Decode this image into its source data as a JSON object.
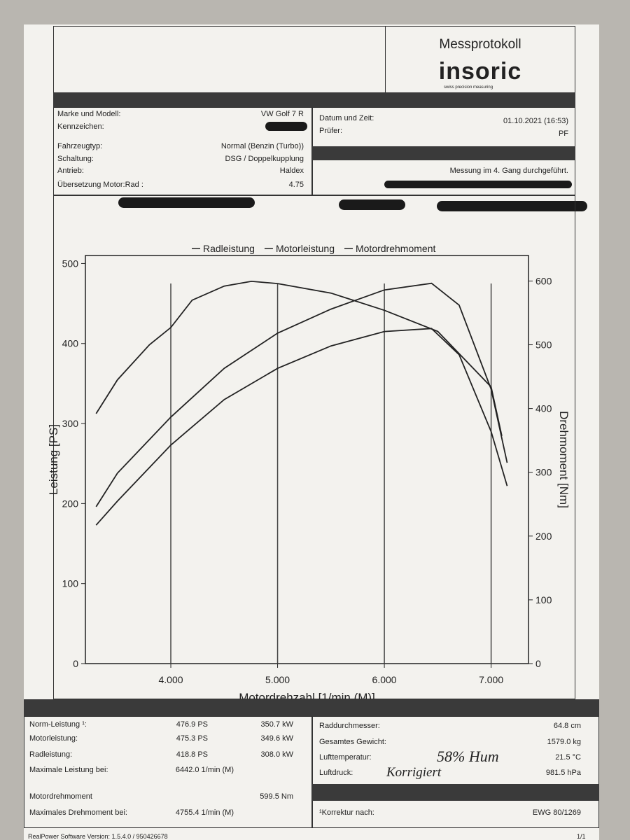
{
  "header": {
    "title": "Messprotokoll",
    "logo": "insoric",
    "tagline": "swiss precision measuring"
  },
  "vehicle": {
    "rows": [
      {
        "label": "Marke und Modell:",
        "value": "VW Golf 7 R"
      },
      {
        "label": "Kennzeichen:"
      },
      {
        "label": "Fahrzeugtyp:",
        "value": "Normal (Benzin (Turbo))"
      },
      {
        "label": "Schaltung:",
        "value": "DSG / Doppelkupplung"
      },
      {
        "label": "Antrieb:",
        "value": "Haldex"
      },
      {
        "label": "Übersetzung Motor:Rad :",
        "value": "4.75"
      }
    ]
  },
  "measurement": {
    "rows": [
      {
        "label": "Datum und Zeit:",
        "value": "01.10.2021 (16:53)"
      },
      {
        "label": "Prüfer:",
        "value": "PF"
      }
    ],
    "note": "Messung im 4. Gang durchgeführt."
  },
  "chart_data": {
    "type": "line",
    "xlabel": "Motordrehzahl [1/min (M)]",
    "ylabel": "Leistung [PS]",
    "y2label": "Drehmoment [Nm]",
    "xlim": [
      3200,
      7350
    ],
    "ylim": [
      0,
      510
    ],
    "y2lim": [
      0,
      640
    ],
    "xticks": [
      {
        "value": 4000,
        "label": "4.000"
      },
      {
        "value": 5000,
        "label": "5.000"
      },
      {
        "value": 6000,
        "label": "6.000"
      },
      {
        "value": 7000,
        "label": "7.000"
      }
    ],
    "yticks": [
      0,
      100,
      200,
      300,
      400,
      500
    ],
    "y2ticks": [
      0,
      100,
      200,
      300,
      400,
      500,
      600
    ],
    "series": [
      {
        "name": "Radleistung",
        "color": "#222222",
        "x": [
          3300,
          3500,
          4000,
          4500,
          5000,
          5500,
          6000,
          6442,
          6700,
          7000,
          7150
        ],
        "values": [
          173,
          203,
          273,
          330,
          369,
          397,
          415,
          418.8,
          386,
          290,
          222
        ]
      },
      {
        "name": "Motorleistung",
        "color": "#222222",
        "x": [
          3300,
          3500,
          4000,
          4500,
          5000,
          5500,
          6000,
          6442,
          6700,
          7000,
          7150
        ],
        "values": [
          196,
          238,
          308,
          369,
          413,
          443,
          467,
          475.3,
          448,
          343,
          251
        ]
      },
      {
        "name": "Motordrehmoment",
        "color": "#222222",
        "axis": "y2",
        "x": [
          3300,
          3500,
          3800,
          4000,
          4200,
          4500,
          4755,
          5000,
          5500,
          6000,
          6500,
          7000,
          7100
        ],
        "values": [
          392,
          445,
          500,
          527,
          570,
          592,
          599.5,
          596,
          581,
          554,
          521,
          434,
          357
        ]
      }
    ]
  },
  "results": {
    "rows": [
      [
        "Norm-Leistung ¹:",
        "476.9 PS",
        "350.7 kW"
      ],
      [
        "Motorleistung:",
        "475.3 PS",
        "349.6 kW"
      ],
      [
        "Radleistung:",
        "418.8 PS",
        "308.0 kW"
      ],
      [
        "Maximale Leistung bei:",
        "6442.0 1/min (M)"
      ],
      [
        "Motordrehmoment",
        "599.5 Nm"
      ],
      [
        "Maximales Drehmoment bei:",
        "4755.4 1/min (M)"
      ]
    ]
  },
  "conditions": {
    "rows": [
      [
        "Raddurchmesser:",
        "64.8 cm"
      ],
      [
        "Gesamtes Gewicht:",
        "1579.0 kg"
      ],
      [
        "Lufttemperatur:",
        "21.5 °C"
      ],
      [
        "Luftdruck:",
        "981.5 hPa"
      ],
      [
        "¹Korrektur nach:",
        "EWG 80/1269"
      ]
    ]
  },
  "handwriting": [
    "58% Hum",
    "Korrigiert"
  ],
  "footer": {
    "software": "RealPower Software Version: 1.5.4.0 / 950426678",
    "page": "1/1"
  }
}
